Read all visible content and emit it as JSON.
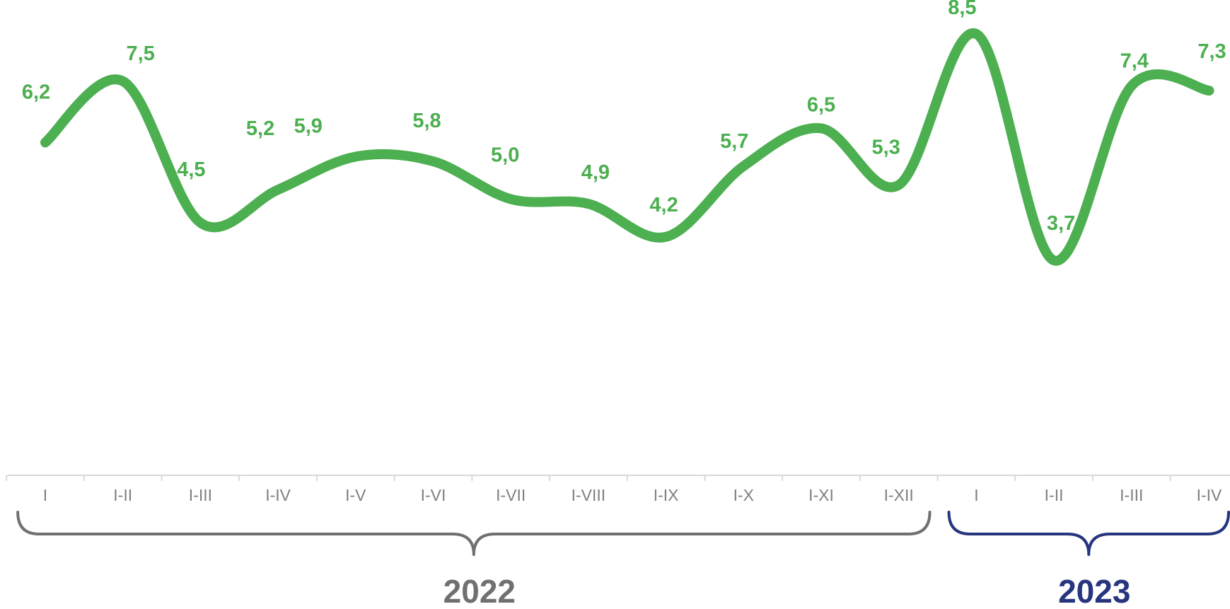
{
  "chart_data": {
    "type": "line",
    "categories": [
      "I",
      "I-II",
      "I-III",
      "I-IV",
      "I-V",
      "I-VI",
      "I-VII",
      "I-VIII",
      "I-IX",
      "I-X",
      "I-XI",
      "I-XII",
      "I",
      "I-II",
      "I-III",
      "I-IV"
    ],
    "values": [
      6.2,
      7.5,
      4.5,
      5.2,
      5.9,
      5.8,
      5.0,
      4.9,
      4.2,
      5.7,
      6.5,
      5.3,
      8.5,
      3.7,
      7.4,
      7.3
    ],
    "data_labels": [
      "6,2",
      "7,5",
      "4,5",
      "5,2",
      "5,9",
      "5,8",
      "5,0",
      "4,9",
      "4,2",
      "5,7",
      "6,5",
      "5,3",
      "8,5",
      "3,7",
      "7,4",
      "7,3"
    ],
    "groups": [
      {
        "label": "2022",
        "start": 0,
        "end": 11,
        "color": "#707070"
      },
      {
        "label": "2023",
        "start": 12,
        "end": 15,
        "color": "#27357e"
      }
    ],
    "line_color": "#4caf50",
    "label_color": "#4caf50",
    "axis_color": "#d9d9d9",
    "tick_label_color": "#7f7f7f",
    "title": "",
    "xlabel": "",
    "ylabel": "",
    "grid": false,
    "legend": "none"
  }
}
